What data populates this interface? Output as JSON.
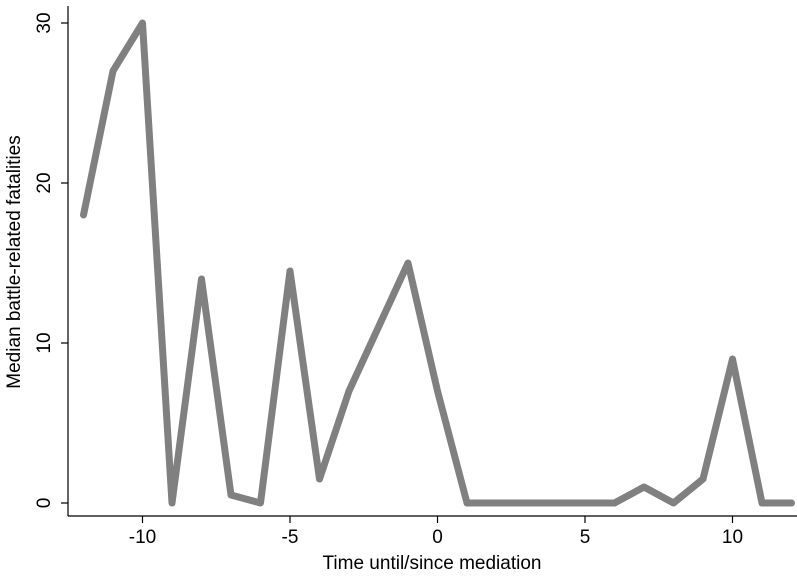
{
  "chart_data": {
    "type": "line",
    "title": "",
    "xlabel": "Time until/since mediation",
    "ylabel": "Median battle-related fatalities",
    "xlim": [
      -12,
      12
    ],
    "ylim": [
      0,
      30
    ],
    "x_ticks": [
      -10,
      -5,
      0,
      5,
      10
    ],
    "y_ticks": [
      0,
      10,
      20,
      30
    ],
    "grid": false,
    "line_color": "#808080",
    "series": [
      {
        "x": [
          -12,
          -11,
          -10,
          -9,
          -8,
          -7,
          -6,
          -5,
          -4,
          -3,
          -2,
          -1,
          0,
          1,
          2,
          3,
          4,
          5,
          6,
          7,
          8,
          9,
          10,
          11,
          12
        ],
        "values": [
          18,
          27,
          30,
          0,
          14,
          0.5,
          0,
          14.5,
          1.5,
          7,
          11,
          15,
          7,
          0,
          0,
          0,
          0,
          0,
          0,
          1,
          0,
          1.5,
          9,
          0,
          0
        ]
      }
    ]
  }
}
